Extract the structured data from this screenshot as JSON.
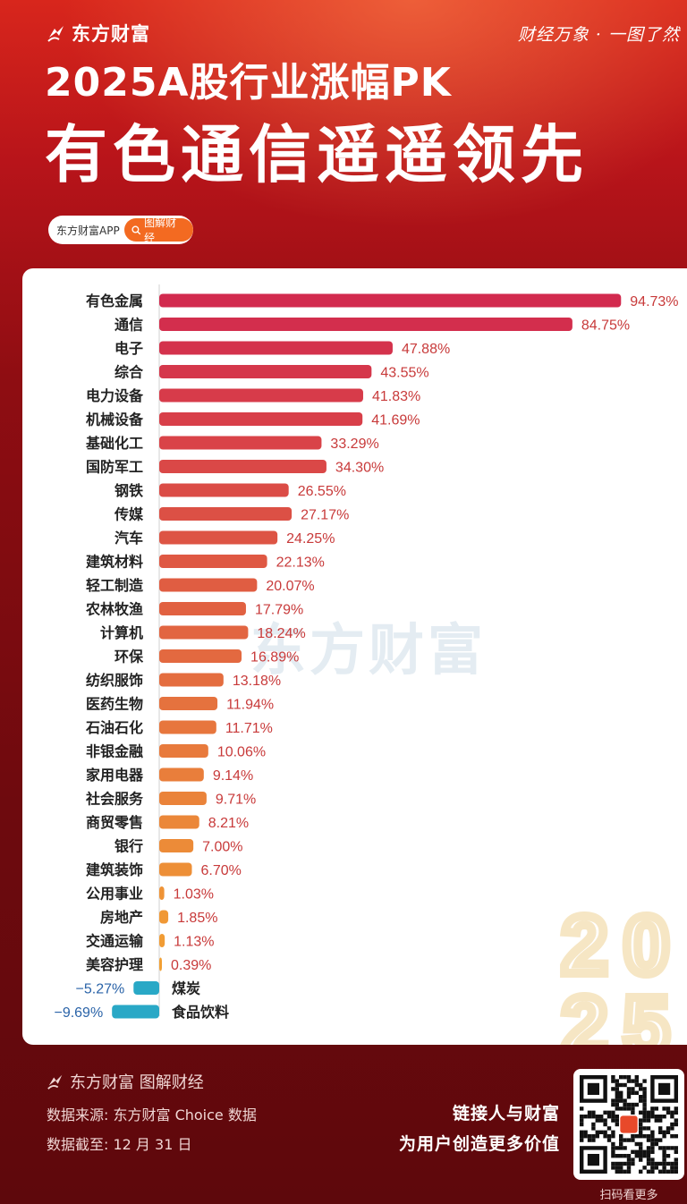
{
  "header": {
    "brand": "东方财富",
    "slogan": "财经万象 · 一图了然",
    "title_line1": "2025A股行业涨幅PK",
    "title_line2": "有色通信遥遥领先",
    "app_name": "东方财富APP",
    "app_button": "图解财经"
  },
  "watermark": {
    "brand": "东方财富",
    "year_top": "20",
    "year_bottom": "25"
  },
  "chart_data": {
    "type": "bar",
    "orientation": "horizontal",
    "categories": [
      "有色金属",
      "通信",
      "电子",
      "综合",
      "电力设备",
      "机械设备",
      "基础化工",
      "国防军工",
      "钢铁",
      "传媒",
      "汽车",
      "建筑材料",
      "轻工制造",
      "农林牧渔",
      "计算机",
      "环保",
      "纺织服饰",
      "医药生物",
      "石油石化",
      "非银金融",
      "家用电器",
      "社会服务",
      "商贸零售",
      "银行",
      "建筑装饰",
      "公用事业",
      "房地产",
      "交通运输",
      "美容护理",
      "煤炭",
      "食品饮料"
    ],
    "values": [
      94.73,
      84.75,
      47.88,
      43.55,
      41.83,
      41.69,
      33.29,
      34.3,
      26.55,
      27.17,
      24.25,
      22.13,
      20.07,
      17.79,
      18.24,
      16.89,
      13.18,
      11.94,
      11.71,
      10.06,
      9.14,
      9.71,
      8.21,
      7.0,
      6.7,
      1.03,
      1.85,
      1.13,
      0.39,
      -5.27,
      -9.69
    ],
    "labels": [
      "94.73%",
      "84.75%",
      "47.88%",
      "43.55%",
      "41.83%",
      "41.69%",
      "33.29%",
      "34.30%",
      "26.55%",
      "27.17%",
      "24.25%",
      "22.13%",
      "20.07%",
      "17.79%",
      "18.24%",
      "16.89%",
      "13.18%",
      "11.94%",
      "11.71%",
      "10.06%",
      "9.14%",
      "9.71%",
      "8.21%",
      "7.00%",
      "6.70%",
      "1.03%",
      "1.85%",
      "1.13%",
      "0.39%",
      "−5.27%",
      "−9.69%"
    ],
    "unit": "%",
    "positive_color_top": "#d22a4e",
    "positive_color_bottom": "#f2a033",
    "negative_color": "#29a8c6",
    "positive_label_color": "#c83a3a",
    "negative_label_color": "#2a63a8"
  },
  "footer": {
    "brand": "东方财富 图解财经",
    "source": "数据来源: 东方财富 Choice 数据",
    "date": "数据截至: 12 月 31 日",
    "tagline1": "链接人与财富",
    "tagline2": "为用户创造更多价值",
    "qr_caption": "扫码看更多"
  }
}
